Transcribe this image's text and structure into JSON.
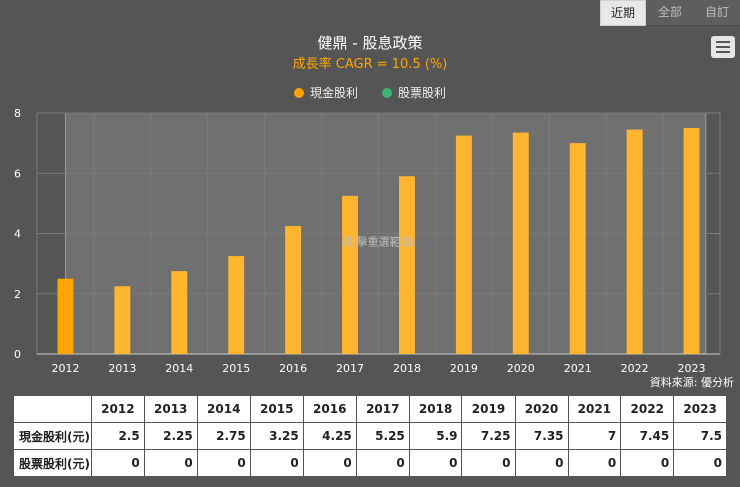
{
  "tabs": {
    "recent": "近期",
    "all": "全部",
    "custom": "自訂"
  },
  "menu_icon": "hamburger-menu-icon",
  "chart_data": {
    "type": "bar",
    "title": "健鼎 - 股息政策",
    "subtitle": "成長率 CAGR = 10.5 (%)",
    "categories": [
      "2012",
      "2013",
      "2014",
      "2015",
      "2016",
      "2017",
      "2018",
      "2019",
      "2020",
      "2021",
      "2022",
      "2023"
    ],
    "series": [
      {
        "name": "現金股利",
        "color": "#ffa500",
        "values": [
          2.5,
          2.25,
          2.75,
          3.25,
          4.25,
          5.25,
          5.9,
          7.25,
          7.35,
          7,
          7.45,
          7.5
        ]
      },
      {
        "name": "股票股利",
        "color": "#3cb371",
        "values": [
          0,
          0,
          0,
          0,
          0,
          0,
          0,
          0,
          0,
          0,
          0,
          0
        ]
      }
    ],
    "ylim": [
      0,
      8
    ],
    "yticks": [
      0,
      2,
      4,
      6,
      8
    ],
    "xlabel": "",
    "ylabel": "",
    "grid": true,
    "zoom_hint": "(點擊重選範圍)",
    "source": "資料來源: 優分析"
  },
  "table": {
    "corner": "",
    "rows": [
      {
        "label": "現金股利(元)",
        "values": [
          "2.5",
          "2.25",
          "2.75",
          "3.25",
          "4.25",
          "5.25",
          "5.9",
          "7.25",
          "7.35",
          "7",
          "7.45",
          "7.5"
        ]
      },
      {
        "label": "股票股利(元)",
        "values": [
          "0",
          "0",
          "0",
          "0",
          "0",
          "0",
          "0",
          "0",
          "0",
          "0",
          "0",
          "0"
        ]
      }
    ]
  }
}
